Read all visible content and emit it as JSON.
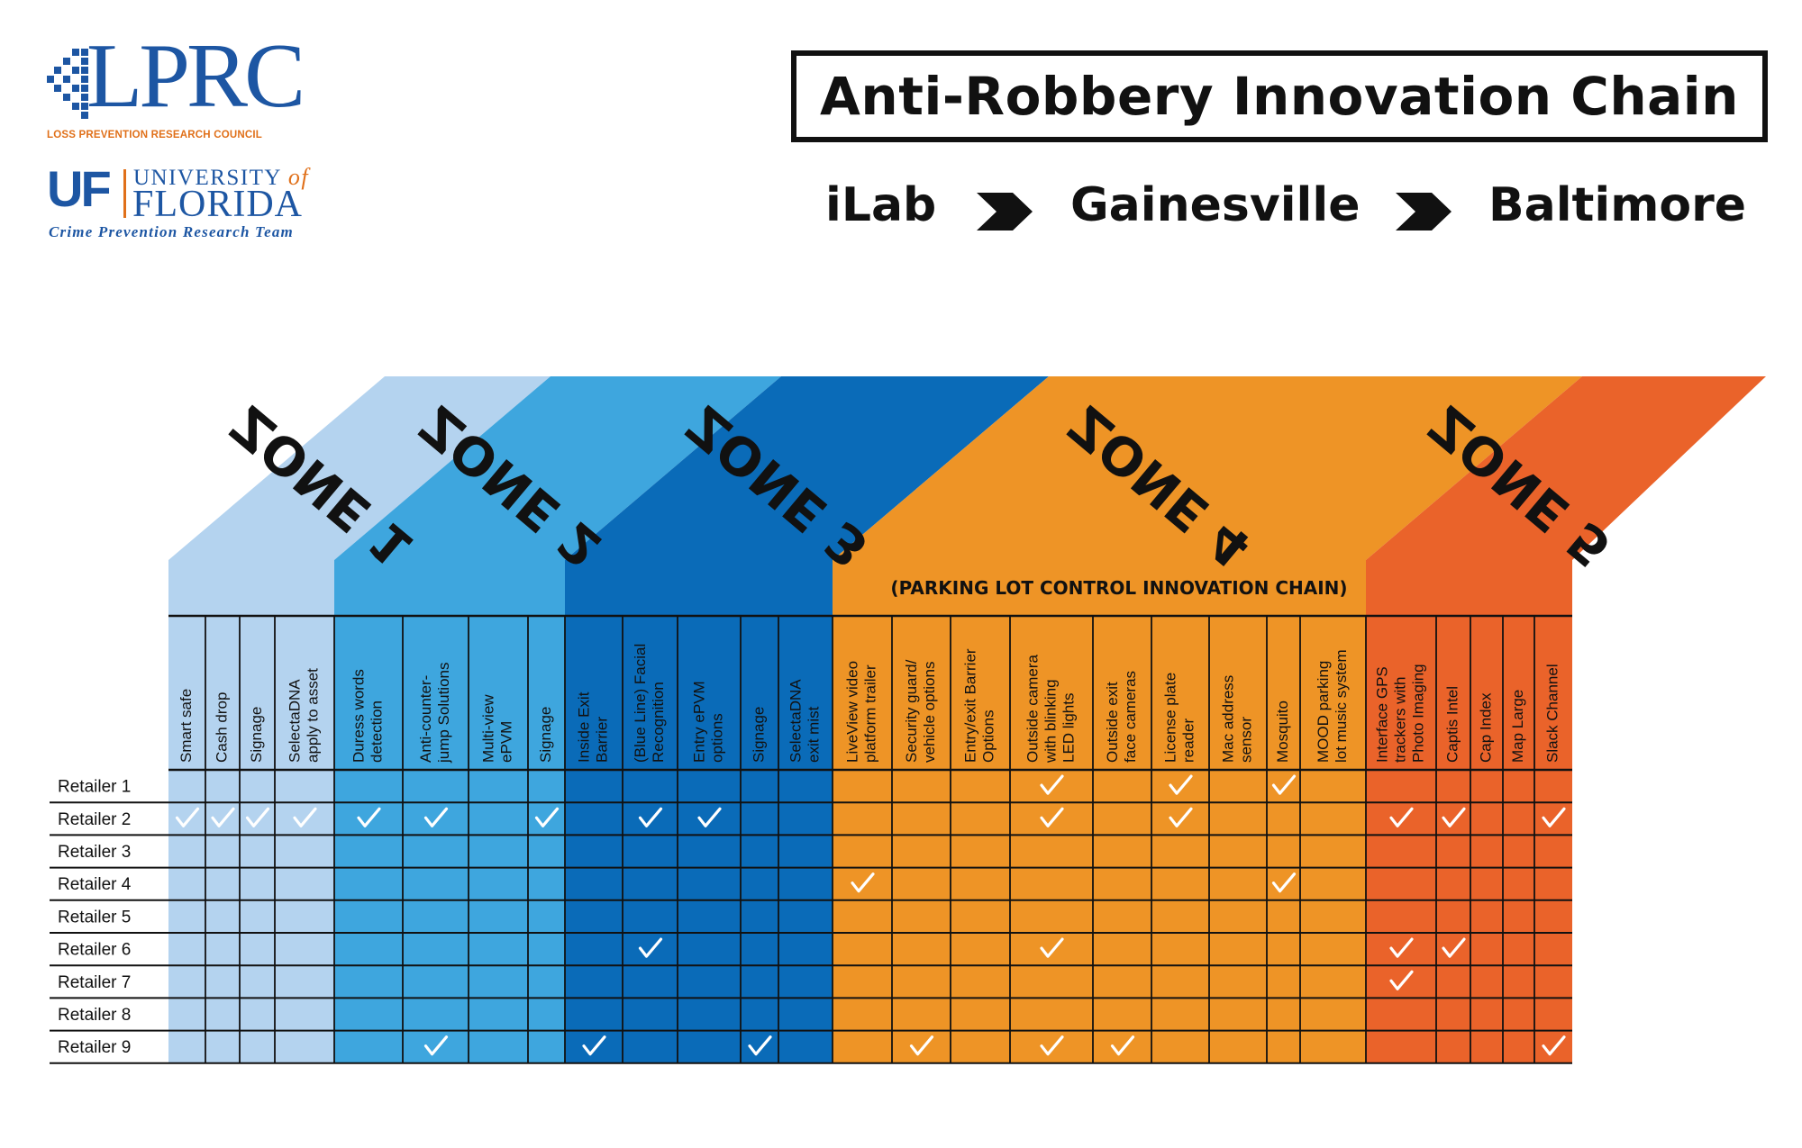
{
  "logos": {
    "lprc": {
      "wordmark": "LPRC",
      "subtitle": "LOSS PREVENTION RESEARCH COUNCIL"
    },
    "uf": {
      "mark": "UF",
      "university": "UNIVERSITY",
      "of": "of",
      "name": "FLORIDA",
      "team": "Crime Prevention Research Team"
    }
  },
  "header": {
    "title": "Anti-Robbery Innovation Chain",
    "chain": [
      "iLab",
      "Gainesville",
      "Baltimore"
    ]
  },
  "colors": {
    "zone1": "#b4d3ef",
    "zone2": "#3ea6de",
    "zone3": "#0a6bb8",
    "zone4": "#ee9426",
    "zone5": "#ea632a",
    "grid": "#111111",
    "check": "#ffffff"
  },
  "chart_data": {
    "type": "table",
    "zones": [
      {
        "name": "ZONE 1",
        "columns": [
          "Smart safe",
          "Cash drop",
          "Signage",
          "SelectaDNA apply to asset"
        ]
      },
      {
        "name": "ZONE 2",
        "columns": [
          "Duress words detection",
          "Anti-counter-jump Solutions",
          "Multi-view ePVM",
          "Signage"
        ]
      },
      {
        "name": "ZONE 3",
        "columns": [
          "Inside Exit Barrier",
          "(Blue Line) Facial Recognition",
          "Entry ePVM options",
          "Signage",
          "SelectaDNA exit mist"
        ]
      },
      {
        "name": "ZONE 4",
        "subtitle": "(PARKING LOT CONTROL INNOVATION CHAIN)",
        "columns": [
          "LiveView video platform trailer",
          "Security guard/ vehicle options",
          "Entry/exit Barrier Options",
          "Outside camera with blinking LED lights",
          "Outside exit face cameras",
          "License plate reader",
          "Mac address sensor",
          "Mosquito",
          "MOOD parking lot music system"
        ]
      },
      {
        "name": "ZONE 5",
        "columns": [
          "Interface GPS trackers with Photo Imaging",
          "Captis Intel",
          "Cap Index",
          "Map Large",
          "Slack Channel"
        ]
      }
    ],
    "rows": [
      "Retailer 1",
      "Retailer 2",
      "Retailer 3",
      "Retailer 4",
      "Retailer 5",
      "Retailer 6",
      "Retailer 7",
      "Retailer 8",
      "Retailer 9"
    ],
    "checked": {
      "Retailer 1": [
        "Outside camera with blinking LED lights",
        "License plate reader",
        "Mosquito"
      ],
      "Retailer 2": [
        "Smart safe",
        "Cash drop",
        "Signage (Zone 1)",
        "SelectaDNA apply to asset",
        "Duress words detection",
        "Anti-counter-jump Solutions",
        "Signage (Zone 2)",
        "(Blue Line) Facial Recognition",
        "Entry ePVM options",
        "Outside camera with blinking LED lights",
        "License plate reader",
        "Interface GPS trackers with Photo Imaging",
        "Captis Intel",
        "Slack Channel"
      ],
      "Retailer 3": [],
      "Retailer 4": [
        "LiveView video platform trailer",
        "Mosquito"
      ],
      "Retailer 5": [],
      "Retailer 6": [
        "(Blue Line) Facial Recognition",
        "Outside camera with blinking LED lights",
        "Interface GPS trackers with Photo Imaging",
        "Captis Intel"
      ],
      "Retailer 7": [
        "Interface GPS trackers with Photo Imaging"
      ],
      "Retailer 8": [],
      "Retailer 9": [
        "Anti-counter-jump Solutions",
        "Inside Exit Barrier",
        "Signage (Zone 3)",
        "Security guard/ vehicle options",
        "Outside camera with blinking LED lights",
        "Outside exit face cameras",
        "Slack Channel"
      ]
    },
    "matrix": [
      [
        0,
        0,
        0,
        0,
        0,
        0,
        0,
        0,
        0,
        0,
        0,
        0,
        0,
        0,
        0,
        0,
        1,
        0,
        1,
        0,
        1,
        0,
        0,
        0,
        0,
        0,
        0
      ],
      [
        1,
        1,
        1,
        1,
        1,
        1,
        0,
        1,
        0,
        1,
        1,
        0,
        0,
        0,
        0,
        0,
        1,
        0,
        1,
        0,
        0,
        0,
        1,
        1,
        0,
        0,
        1
      ],
      [
        0,
        0,
        0,
        0,
        0,
        0,
        0,
        0,
        0,
        0,
        0,
        0,
        0,
        0,
        0,
        0,
        0,
        0,
        0,
        0,
        0,
        0,
        0,
        0,
        0,
        0,
        0
      ],
      [
        0,
        0,
        0,
        0,
        0,
        0,
        0,
        0,
        0,
        0,
        0,
        0,
        0,
        1,
        0,
        0,
        0,
        0,
        0,
        0,
        1,
        0,
        0,
        0,
        0,
        0,
        0
      ],
      [
        0,
        0,
        0,
        0,
        0,
        0,
        0,
        0,
        0,
        0,
        0,
        0,
        0,
        0,
        0,
        0,
        0,
        0,
        0,
        0,
        0,
        0,
        0,
        0,
        0,
        0,
        0
      ],
      [
        0,
        0,
        0,
        0,
        0,
        0,
        0,
        0,
        0,
        1,
        0,
        0,
        0,
        0,
        0,
        0,
        1,
        0,
        0,
        0,
        0,
        0,
        1,
        1,
        0,
        0,
        0
      ],
      [
        0,
        0,
        0,
        0,
        0,
        0,
        0,
        0,
        0,
        0,
        0,
        0,
        0,
        0,
        0,
        0,
        0,
        0,
        0,
        0,
        0,
        0,
        1,
        0,
        0,
        0,
        0
      ],
      [
        0,
        0,
        0,
        0,
        0,
        0,
        0,
        0,
        0,
        0,
        0,
        0,
        0,
        0,
        0,
        0,
        0,
        0,
        0,
        0,
        0,
        0,
        0,
        0,
        0,
        0,
        0
      ],
      [
        0,
        0,
        0,
        0,
        0,
        1,
        0,
        0,
        1,
        0,
        0,
        1,
        0,
        0,
        1,
        0,
        1,
        1,
        0,
        0,
        0,
        0,
        0,
        0,
        0,
        0,
        1
      ]
    ]
  }
}
